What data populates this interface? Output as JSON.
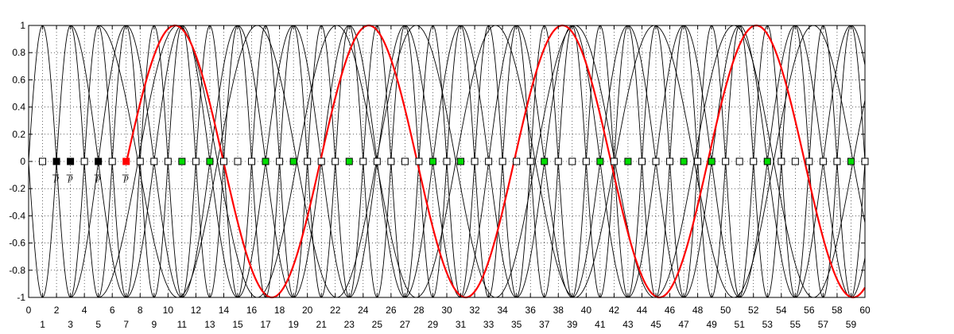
{
  "chart_data": {
    "type": "line",
    "title": "",
    "xlabel": "",
    "ylabel": "",
    "xlim": [
      0,
      60
    ],
    "ylim": [
      -1,
      1
    ],
    "grid": true,
    "legend": "none",
    "x_ticks": [
      0,
      1,
      2,
      3,
      4,
      5,
      6,
      7,
      8,
      9,
      10,
      11,
      12,
      13,
      14,
      15,
      16,
      17,
      18,
      19,
      20,
      21,
      22,
      23,
      24,
      25,
      26,
      27,
      28,
      29,
      30,
      31,
      32,
      33,
      34,
      35,
      36,
      37,
      38,
      39,
      40,
      41,
      42,
      43,
      44,
      45,
      46,
      47,
      48,
      49,
      50,
      51,
      52,
      53,
      54,
      55,
      56,
      57,
      58,
      59,
      60
    ],
    "y_ticks": [
      1,
      0.8,
      0.6,
      0.4,
      0.2,
      0,
      -0.2,
      -0.4,
      -0.6,
      -0.8,
      -1
    ],
    "series": [
      {
        "color": "#000000",
        "x_start": 0,
        "x_end": 60,
        "period": 4.0,
        "peak_at": 1.0
      },
      {
        "color": "#000000",
        "x_start": 0,
        "x_end": 60,
        "period": 4.0,
        "peak_at": 3.0
      },
      {
        "color": "#000000",
        "x_start": 3,
        "x_end": 60,
        "period": 8.0,
        "peak_at": 11.0
      },
      {
        "color": "#000000",
        "x_start": 3,
        "x_end": 60,
        "period": 8.0,
        "peak_at": 7.0
      },
      {
        "color": "#000000",
        "x_start": 5,
        "x_end": 60,
        "period": 11.4,
        "peak_at": 10.7
      },
      {
        "color": "#000000",
        "x_start": 5,
        "x_end": 60,
        "period": 11.4,
        "peak_at": 16.4
      },
      {
        "color": "#ff0000",
        "x_start": 7,
        "x_end": 60,
        "period": 13.9,
        "peak_at": 10.5
      }
    ],
    "markers": [
      {
        "x": 1,
        "fill": "#ffffff"
      },
      {
        "x": 2,
        "fill": "#000000",
        "label": "p"
      },
      {
        "x": 3,
        "fill": "#000000",
        "label": "p"
      },
      {
        "x": 4,
        "fill": "#ffffff"
      },
      {
        "x": 5,
        "fill": "#000000",
        "label": "p"
      },
      {
        "x": 6,
        "fill": "#ffffff"
      },
      {
        "x": 7,
        "fill": "#ff0000",
        "label": "p"
      },
      {
        "x": 8,
        "fill": "#ffffff"
      },
      {
        "x": 9,
        "fill": "#ffffff"
      },
      {
        "x": 10,
        "fill": "#ffffff"
      },
      {
        "x": 11,
        "fill": "#00dd00"
      },
      {
        "x": 12,
        "fill": "#ffffff"
      },
      {
        "x": 13,
        "fill": "#00dd00"
      },
      {
        "x": 14,
        "fill": "#ffffff"
      },
      {
        "x": 15,
        "fill": "#ffffff"
      },
      {
        "x": 16,
        "fill": "#ffffff"
      },
      {
        "x": 17,
        "fill": "#00dd00"
      },
      {
        "x": 18,
        "fill": "#ffffff"
      },
      {
        "x": 19,
        "fill": "#00dd00"
      },
      {
        "x": 20,
        "fill": "#ffffff"
      },
      {
        "x": 21,
        "fill": "#ffffff"
      },
      {
        "x": 22,
        "fill": "#ffffff"
      },
      {
        "x": 23,
        "fill": "#00dd00"
      },
      {
        "x": 24,
        "fill": "#ffffff"
      },
      {
        "x": 25,
        "fill": "#ffffff"
      },
      {
        "x": 26,
        "fill": "#ffffff"
      },
      {
        "x": 27,
        "fill": "#ffffff"
      },
      {
        "x": 28,
        "fill": "#ffffff"
      },
      {
        "x": 29,
        "fill": "#00dd00"
      },
      {
        "x": 30,
        "fill": "#ffffff"
      },
      {
        "x": 31,
        "fill": "#00dd00"
      },
      {
        "x": 32,
        "fill": "#ffffff"
      },
      {
        "x": 33,
        "fill": "#ffffff"
      },
      {
        "x": 34,
        "fill": "#ffffff"
      },
      {
        "x": 35,
        "fill": "#ffffff"
      },
      {
        "x": 36,
        "fill": "#ffffff"
      },
      {
        "x": 37,
        "fill": "#00dd00"
      },
      {
        "x": 38,
        "fill": "#ffffff"
      },
      {
        "x": 39,
        "fill": "#ffffff"
      },
      {
        "x": 40,
        "fill": "#ffffff"
      },
      {
        "x": 41,
        "fill": "#00dd00"
      },
      {
        "x": 42,
        "fill": "#ffffff"
      },
      {
        "x": 43,
        "fill": "#00dd00"
      },
      {
        "x": 44,
        "fill": "#ffffff"
      },
      {
        "x": 45,
        "fill": "#ffffff"
      },
      {
        "x": 46,
        "fill": "#ffffff"
      },
      {
        "x": 47,
        "fill": "#00dd00"
      },
      {
        "x": 48,
        "fill": "#ffffff"
      },
      {
        "x": 49,
        "fill": "#00dd00"
      },
      {
        "x": 50,
        "fill": "#ffffff"
      },
      {
        "x": 51,
        "fill": "#ffffff"
      },
      {
        "x": 52,
        "fill": "#ffffff"
      },
      {
        "x": 53,
        "fill": "#00dd00"
      },
      {
        "x": 54,
        "fill": "#ffffff"
      },
      {
        "x": 55,
        "fill": "#ffffff"
      },
      {
        "x": 56,
        "fill": "#ffffff"
      },
      {
        "x": 57,
        "fill": "#ffffff"
      },
      {
        "x": 58,
        "fill": "#ffffff"
      },
      {
        "x": 59,
        "fill": "#00dd00"
      },
      {
        "x": 60,
        "fill": "#ffffff"
      }
    ],
    "marker_y": 0
  }
}
